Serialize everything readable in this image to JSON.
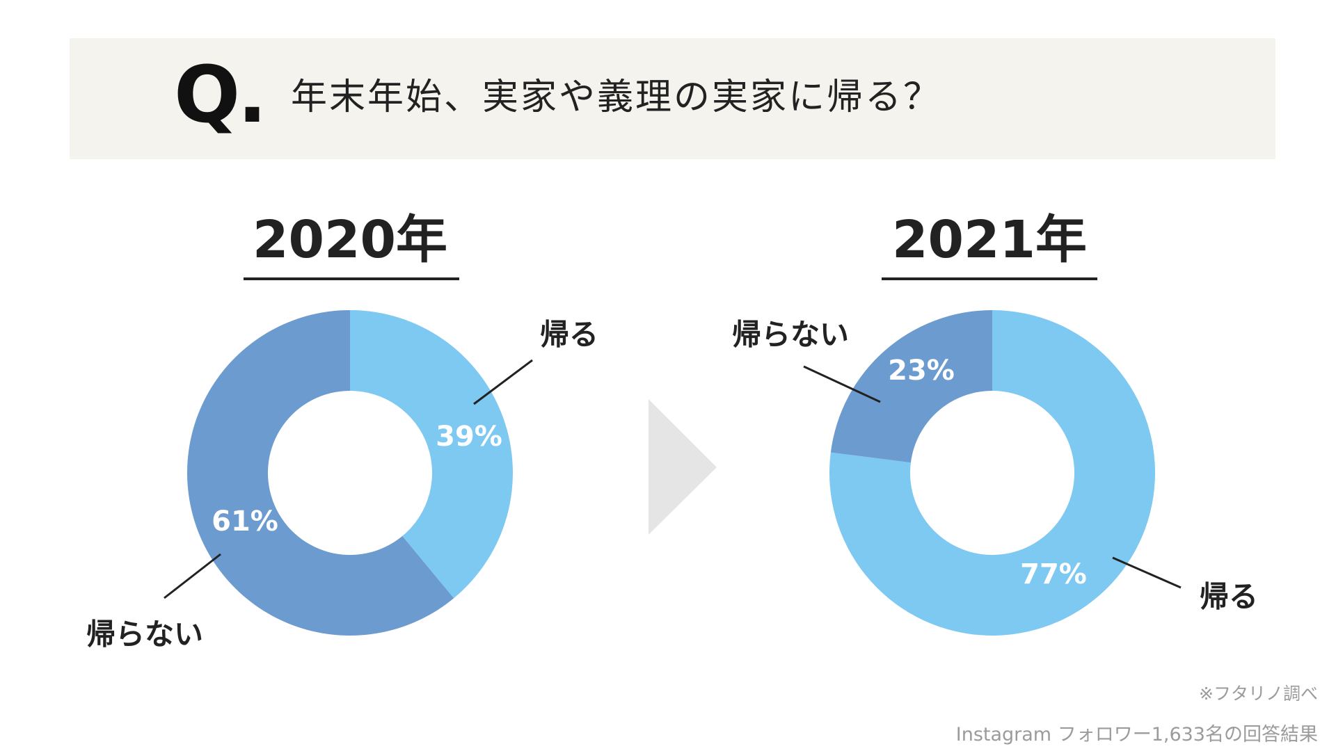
{
  "question": {
    "mark": "Q.",
    "text": "年末年始、実家や義理の実家に帰る？"
  },
  "charts": {
    "left": {
      "year": "2020年"
    },
    "right": {
      "year": "2021年"
    }
  },
  "chart_data": [
    {
      "type": "pie",
      "title": "2020年",
      "categories": [
        "帰る",
        "帰らない"
      ],
      "values": [
        39,
        61
      ],
      "value_labels": [
        "39%",
        "61%"
      ],
      "colors": [
        "#7ec9f1",
        "#6c9bcf"
      ]
    },
    {
      "type": "pie",
      "title": "2021年",
      "categories": [
        "帰る",
        "帰らない"
      ],
      "values": [
        77,
        23
      ],
      "value_labels": [
        "77%",
        "23%"
      ],
      "colors": [
        "#7ec9f1",
        "#6c9bcf"
      ]
    }
  ],
  "colors": {
    "return": "#7ec9f1",
    "not_return": "#6c9bcf",
    "banner_bg": "#f4f3ee",
    "arrow": "#e5e5e5"
  },
  "arrow_icon": "triangle-right-icon",
  "footnotes": {
    "line1": "※フタリノ調べ",
    "line2": "Instagram フォロワー1,633名の回答結果"
  }
}
